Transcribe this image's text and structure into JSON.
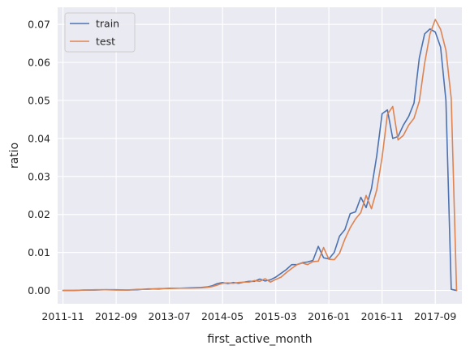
{
  "chart_data": {
    "type": "line",
    "title": "",
    "xlabel": "first_active_month",
    "ylabel": "ratio",
    "x_tick_labels": [
      "2011-11",
      "2012-09",
      "2013-07",
      "2014-05",
      "2015-03",
      "2016-01",
      "2016-11",
      "2017-09"
    ],
    "y_tick_labels": [
      "0.00",
      "0.01",
      "0.02",
      "0.03",
      "0.04",
      "0.05",
      "0.06",
      "0.07"
    ],
    "y_ticks": [
      0,
      0.01,
      0.02,
      0.03,
      0.04,
      0.05,
      0.06,
      0.07
    ],
    "xlim": [
      "2011-10",
      "2018-02"
    ],
    "ylim": [
      -0.0035,
      0.0745
    ],
    "grid": true,
    "legend_position": "top-left",
    "background": "#eaeaf2",
    "series": [
      {
        "name": "train",
        "color": "#4c72b0",
        "points": [
          [
            "2011-11",
            0.0
          ],
          [
            "2012-01",
            0.0
          ],
          [
            "2012-03",
            0.0001
          ],
          [
            "2012-05",
            0.0001
          ],
          [
            "2012-07",
            0.0002
          ],
          [
            "2012-09",
            0.0002
          ],
          [
            "2012-11",
            0.0001
          ],
          [
            "2013-01",
            0.0002
          ],
          [
            "2013-03",
            0.0004
          ],
          [
            "2013-05",
            0.0004
          ],
          [
            "2013-07",
            0.0006
          ],
          [
            "2013-09",
            0.0006
          ],
          [
            "2013-11",
            0.0007
          ],
          [
            "2014-01",
            0.0008
          ],
          [
            "2014-02",
            0.0009
          ],
          [
            "2014-03",
            0.0012
          ],
          [
            "2014-04",
            0.0018
          ],
          [
            "2014-05",
            0.0021
          ],
          [
            "2014-06",
            0.0018
          ],
          [
            "2014-07",
            0.0021
          ],
          [
            "2014-08",
            0.0019
          ],
          [
            "2014-09",
            0.0022
          ],
          [
            "2014-10",
            0.0024
          ],
          [
            "2014-11",
            0.0024
          ],
          [
            "2014-12",
            0.003
          ],
          [
            "2015-01",
            0.0025
          ],
          [
            "2015-02",
            0.0028
          ],
          [
            "2015-03",
            0.0035
          ],
          [
            "2015-04",
            0.0045
          ],
          [
            "2015-05",
            0.0055
          ],
          [
            "2015-06",
            0.0068
          ],
          [
            "2015-07",
            0.0068
          ],
          [
            "2015-08",
            0.0073
          ],
          [
            "2015-09",
            0.0075
          ],
          [
            "2015-10",
            0.0079
          ],
          [
            "2015-11",
            0.0116
          ],
          [
            "2015-12",
            0.0086
          ],
          [
            "2016-01",
            0.0083
          ],
          [
            "2016-02",
            0.01
          ],
          [
            "2016-03",
            0.0143
          ],
          [
            "2016-04",
            0.016
          ],
          [
            "2016-05",
            0.0202
          ],
          [
            "2016-06",
            0.0207
          ],
          [
            "2016-07",
            0.0245
          ],
          [
            "2016-08",
            0.0218
          ],
          [
            "2016-09",
            0.0268
          ],
          [
            "2016-10",
            0.0355
          ],
          [
            "2016-11",
            0.0465
          ],
          [
            "2016-12",
            0.0475
          ],
          [
            "2017-01",
            0.04
          ],
          [
            "2017-02",
            0.0405
          ],
          [
            "2017-03",
            0.0435
          ],
          [
            "2017-04",
            0.0458
          ],
          [
            "2017-05",
            0.0493
          ],
          [
            "2017-06",
            0.0612
          ],
          [
            "2017-07",
            0.0675
          ],
          [
            "2017-08",
            0.0688
          ],
          [
            "2017-09",
            0.068
          ],
          [
            "2017-10",
            0.064
          ],
          [
            "2017-11",
            0.05
          ],
          [
            "2017-12",
            0.0003
          ],
          [
            "2018-01",
            0.0
          ]
        ]
      },
      {
        "name": "test",
        "color": "#dd8452",
        "points": [
          [
            "2011-11",
            0.0
          ],
          [
            "2012-01",
            0.0
          ],
          [
            "2012-03",
            0.0001
          ],
          [
            "2012-05",
            0.0002
          ],
          [
            "2012-07",
            0.0002
          ],
          [
            "2012-09",
            0.0001
          ],
          [
            "2012-11",
            0.0001
          ],
          [
            "2013-01",
            0.0003
          ],
          [
            "2013-03",
            0.0003
          ],
          [
            "2013-05",
            0.0005
          ],
          [
            "2013-07",
            0.0005
          ],
          [
            "2013-09",
            0.0006
          ],
          [
            "2013-11",
            0.0006
          ],
          [
            "2014-01",
            0.0007
          ],
          [
            "2014-02",
            0.0008
          ],
          [
            "2014-03",
            0.001
          ],
          [
            "2014-04",
            0.0014
          ],
          [
            "2014-05",
            0.0019
          ],
          [
            "2014-06",
            0.002
          ],
          [
            "2014-07",
            0.0019
          ],
          [
            "2014-08",
            0.0021
          ],
          [
            "2014-09",
            0.0022
          ],
          [
            "2014-10",
            0.0022
          ],
          [
            "2014-11",
            0.0026
          ],
          [
            "2014-12",
            0.0024
          ],
          [
            "2015-01",
            0.0031
          ],
          [
            "2015-02",
            0.0022
          ],
          [
            "2015-03",
            0.0029
          ],
          [
            "2015-04",
            0.0035
          ],
          [
            "2015-05",
            0.0047
          ],
          [
            "2015-06",
            0.0058
          ],
          [
            "2015-07",
            0.0068
          ],
          [
            "2015-08",
            0.0072
          ],
          [
            "2015-09",
            0.0068
          ],
          [
            "2015-10",
            0.0076
          ],
          [
            "2015-11",
            0.0077
          ],
          [
            "2015-12",
            0.0113
          ],
          [
            "2016-01",
            0.0082
          ],
          [
            "2016-02",
            0.0081
          ],
          [
            "2016-03",
            0.0098
          ],
          [
            "2016-04",
            0.0135
          ],
          [
            "2016-05",
            0.0165
          ],
          [
            "2016-06",
            0.0188
          ],
          [
            "2016-07",
            0.0205
          ],
          [
            "2016-08",
            0.025
          ],
          [
            "2016-09",
            0.0215
          ],
          [
            "2016-10",
            0.0265
          ],
          [
            "2016-11",
            0.035
          ],
          [
            "2016-12",
            0.0463
          ],
          [
            "2017-01",
            0.0484
          ],
          [
            "2017-02",
            0.0396
          ],
          [
            "2017-03",
            0.0408
          ],
          [
            "2017-04",
            0.0435
          ],
          [
            "2017-05",
            0.0453
          ],
          [
            "2017-06",
            0.0498
          ],
          [
            "2017-07",
            0.0598
          ],
          [
            "2017-08",
            0.0675
          ],
          [
            "2017-09",
            0.0713
          ],
          [
            "2017-10",
            0.0687
          ],
          [
            "2017-11",
            0.0632
          ],
          [
            "2017-12",
            0.0505
          ],
          [
            "2018-01",
            0.0
          ]
        ]
      }
    ]
  }
}
